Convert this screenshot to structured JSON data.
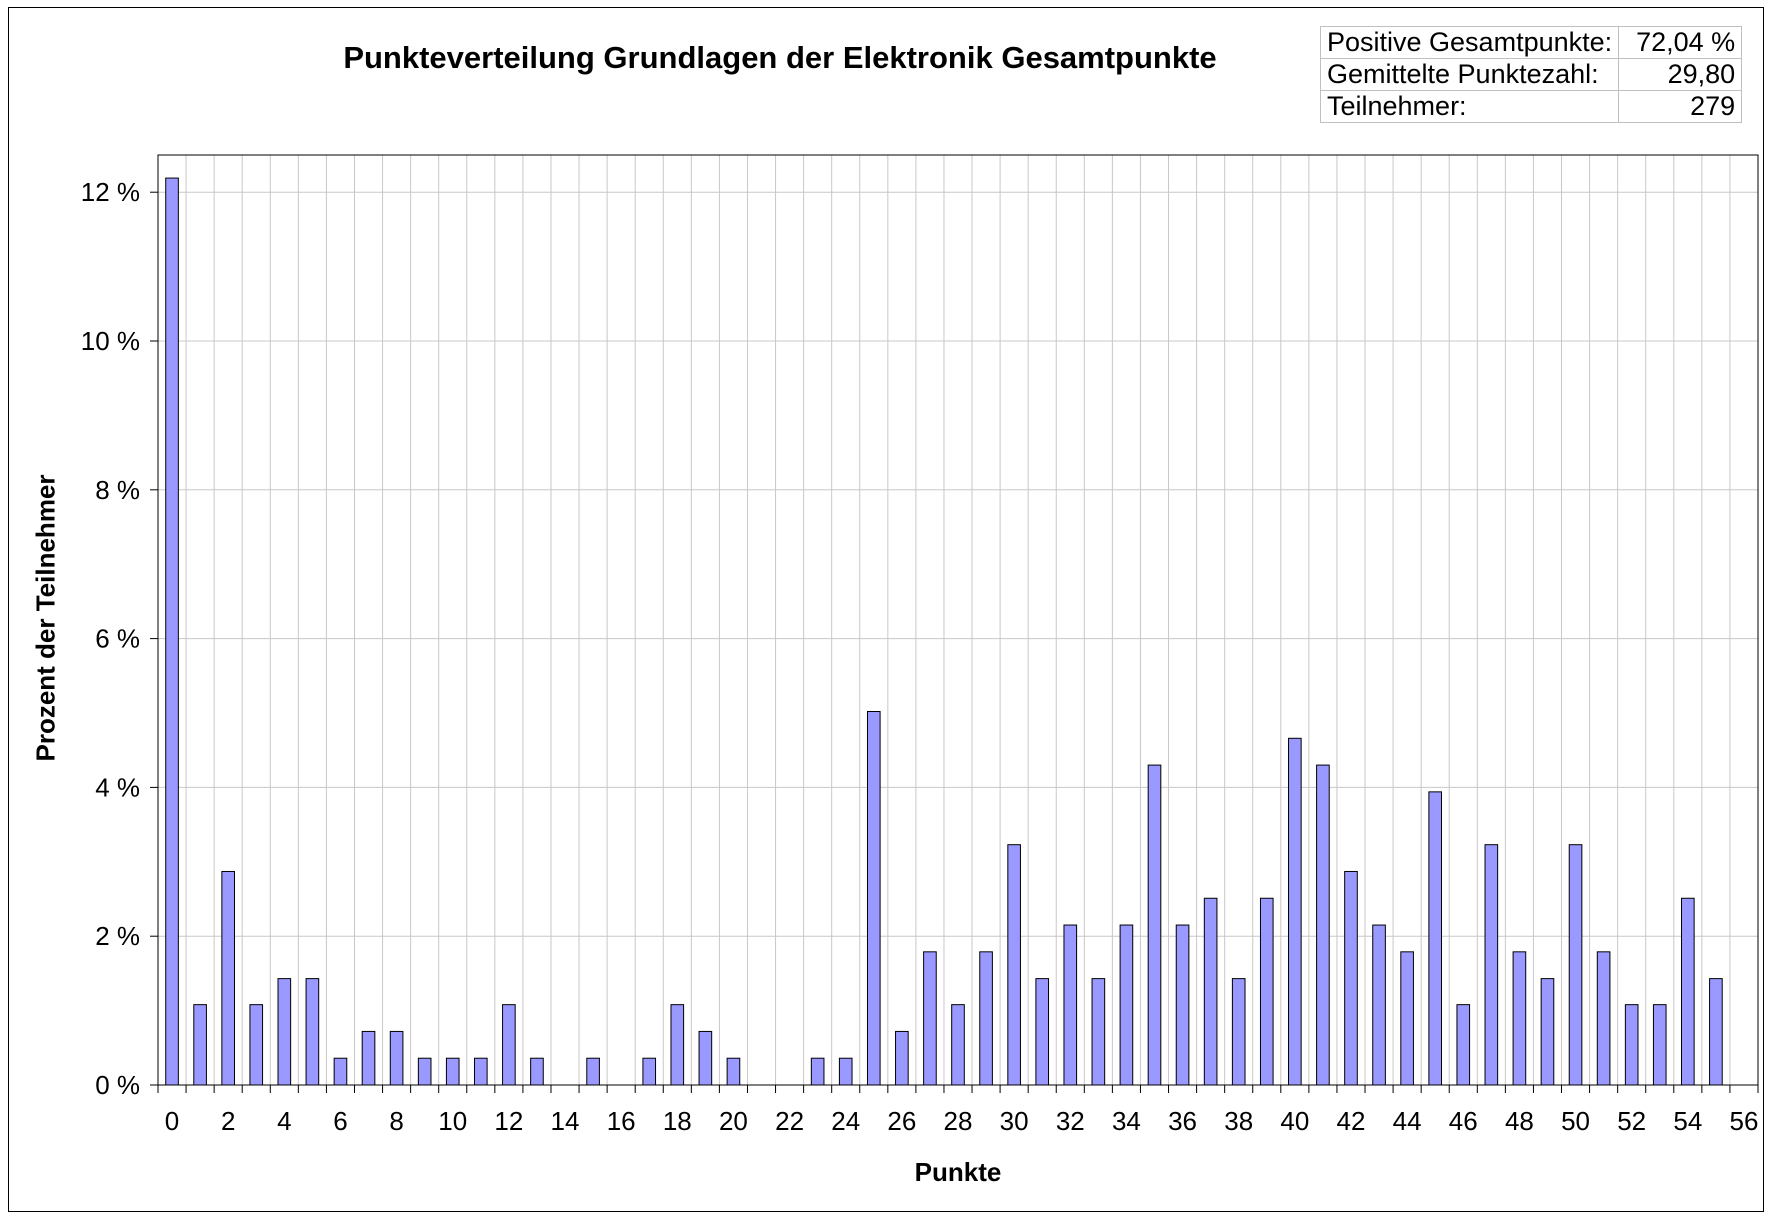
{
  "chart_data": {
    "type": "bar",
    "title": "Punkteverteilung Grundlagen der Elektronik Gesamtpunkte",
    "xlabel": "Punkte",
    "ylabel": "Prozent der Teilnehmer",
    "x": [
      0,
      1,
      2,
      3,
      4,
      5,
      6,
      7,
      8,
      9,
      10,
      11,
      12,
      13,
      14,
      15,
      16,
      17,
      18,
      19,
      20,
      21,
      22,
      23,
      24,
      25,
      26,
      27,
      28,
      29,
      30,
      31,
      32,
      33,
      34,
      35,
      36,
      37,
      38,
      39,
      40,
      41,
      42,
      43,
      44,
      45,
      46,
      47,
      48,
      49,
      50,
      51,
      52,
      53,
      54,
      55
    ],
    "values": [
      12.19,
      1.08,
      2.87,
      1.08,
      1.43,
      1.43,
      0.36,
      0.72,
      0.72,
      0.36,
      0.36,
      0.36,
      1.08,
      0.36,
      0,
      0.36,
      0,
      0.36,
      1.08,
      0.72,
      0.36,
      0,
      0,
      0.36,
      0.36,
      5.02,
      0.72,
      1.79,
      1.08,
      1.79,
      3.23,
      1.43,
      2.15,
      1.43,
      2.15,
      4.3,
      2.15,
      2.51,
      1.43,
      2.51,
      4.66,
      4.3,
      2.87,
      2.15,
      1.79,
      3.94,
      1.08,
      3.23,
      1.79,
      1.43,
      3.23,
      1.79,
      1.08,
      1.08,
      2.51,
      1.43
    ],
    "ylim": [
      0,
      12.5
    ],
    "yticks": [
      0,
      2,
      4,
      6,
      8,
      10,
      12
    ],
    "ytick_labels": [
      "0 %",
      "2 %",
      "4 %",
      "6 %",
      "8 %",
      "10 %",
      "12 %"
    ],
    "xticks": [
      0,
      2,
      4,
      6,
      8,
      10,
      12,
      14,
      16,
      18,
      20,
      22,
      24,
      26,
      28,
      30,
      32,
      34,
      36,
      38,
      40,
      42,
      44,
      46,
      48,
      50,
      52,
      54,
      56
    ],
    "xlim": [
      -0.5,
      56.5
    ],
    "grid": true,
    "bar_color": "#9999ff"
  },
  "stats": [
    {
      "label": "Positive Gesamtpunkte:",
      "value": "72,04 %"
    },
    {
      "label": "Gemittelte Punktezahl:",
      "value": "29,80"
    },
    {
      "label": "Teilnehmer:",
      "value": "279"
    }
  ]
}
